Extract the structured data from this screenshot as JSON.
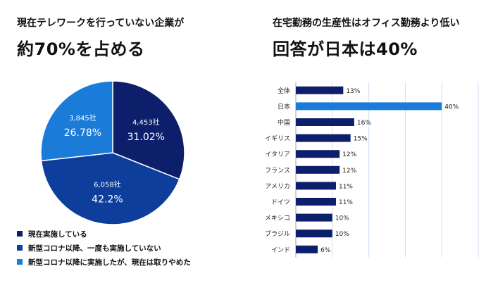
{
  "left": {
    "headline_line1": "現在テレワークを行っていない企業が",
    "headline_line2": "約70%を占める"
  },
  "right": {
    "headline_line1": "在宅勤務の生産性はオフィス勤務より低い",
    "headline_line2": "回答が日本は40%"
  },
  "colors": {
    "navy": "#0d1f6b",
    "royal": "#0e3e9c",
    "blue": "#1b7bd8"
  },
  "chart_data": [
    {
      "type": "pie",
      "title": "",
      "slices": [
        {
          "label": "現在実施している",
          "count_label": "4,453社",
          "percent_label": "31.02%",
          "value": 31.02,
          "color": "#0d1f6b"
        },
        {
          "label": "新型コロナ以降、一度も実施していない",
          "count_label": "6,058社",
          "percent_label": "42.2%",
          "value": 42.2,
          "color": "#0e3e9c"
        },
        {
          "label": "新型コロナ以降に実施したが、現在は取りやめた",
          "count_label": "3,845社",
          "percent_label": "26.78%",
          "value": 26.78,
          "color": "#1b7bd8"
        }
      ],
      "legend_position": "bottom-left"
    },
    {
      "type": "bar",
      "orientation": "horizontal",
      "categories": [
        "全体",
        "日本",
        "中国",
        "イギリス",
        "イタリア",
        "フランス",
        "アメリカ",
        "ドイツ",
        "メキシコ",
        "ブラジル",
        "インド"
      ],
      "values": [
        13,
        40,
        16,
        15,
        12,
        12,
        11,
        11,
        10,
        10,
        6
      ],
      "value_labels": [
        "13%",
        "40%",
        "16%",
        "15%",
        "12%",
        "12%",
        "11%",
        "11%",
        "10%",
        "10%",
        "6%"
      ],
      "highlight_category": "日本",
      "bar_color": "#0d1f6b",
      "highlight_color": "#1b7bd8",
      "xlim": [
        0,
        50
      ],
      "grid": true
    }
  ]
}
